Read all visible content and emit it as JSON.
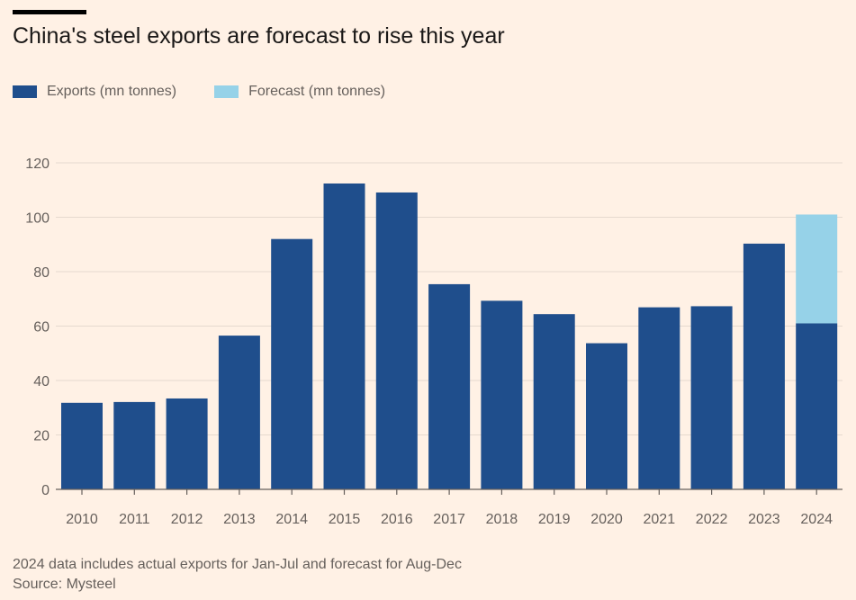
{
  "chart_data": {
    "type": "bar",
    "stacked": true,
    "title": "China's steel exports are forecast to rise this year",
    "categories": [
      "2010",
      "2011",
      "2012",
      "2013",
      "2014",
      "2015",
      "2016",
      "2017",
      "2018",
      "2019",
      "2020",
      "2021",
      "2022",
      "2023",
      "2024"
    ],
    "series": [
      {
        "name": "Exports (mn tonnes)",
        "color": "#1f4e8c",
        "values": [
          31.8,
          32.1,
          33.4,
          56.5,
          92.0,
          112.4,
          109.1,
          75.4,
          69.3,
          64.4,
          53.7,
          66.9,
          67.3,
          90.3,
          61.0
        ]
      },
      {
        "name": "Forecast (mn tonnes)",
        "color": "#96d2e8",
        "values": [
          0,
          0,
          0,
          0,
          0,
          0,
          0,
          0,
          0,
          0,
          0,
          0,
          0,
          0,
          40.0
        ]
      }
    ],
    "yticks": [
      0,
      20,
      40,
      60,
      80,
      100,
      120
    ],
    "ylim": [
      0,
      120
    ],
    "xlabel": "",
    "ylabel": "",
    "grid": true,
    "legend_position": "top-left"
  },
  "colors": {
    "background": "#fff1e5",
    "gridline": "#e6d9ce",
    "axis": "#66605c"
  },
  "footer": {
    "note": "2024 data includes actual exports for Jan-Jul and forecast for Aug-Dec",
    "source": "Source: Mysteel"
  }
}
